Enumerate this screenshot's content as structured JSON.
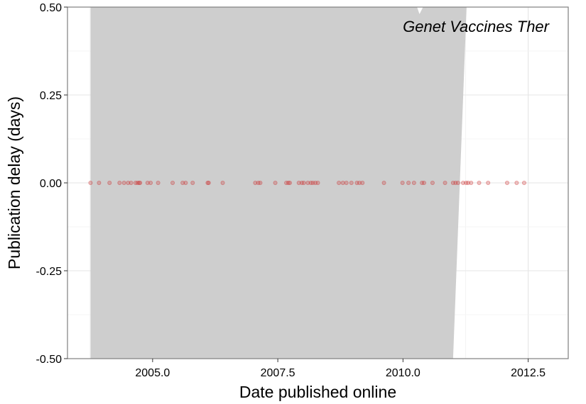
{
  "chart_data": {
    "type": "scatter",
    "title": "",
    "annotation": "Genet Vaccines Ther",
    "xlabel": "Date published online",
    "ylabel": "Publication delay (days)",
    "xlim": [
      2003.3,
      2013.3
    ],
    "ylim": [
      -0.5,
      0.5
    ],
    "x_ticks": [
      2005.0,
      2007.5,
      2010.0,
      2012.5
    ],
    "x_tick_labels": [
      "2005.0",
      "2007.5",
      "2010.0",
      "2012.5"
    ],
    "y_ticks": [
      0.5,
      0.25,
      0.0,
      -0.25,
      -0.5
    ],
    "y_tick_labels": [
      "0.50",
      "0.25",
      "0.00",
      "-0.25",
      "-0.50"
    ],
    "grid": true,
    "point_color": "#cc3333",
    "band_color": "#cccccc",
    "confidence_band": {
      "upper": [
        [
          2003.76,
          0.5
        ],
        [
          2010.28,
          0.5
        ],
        [
          2010.33,
          0.48
        ],
        [
          2010.4,
          0.5
        ],
        [
          2011.27,
          0.5
        ]
      ],
      "lower": [
        [
          2003.76,
          -0.5
        ],
        [
          2011.0,
          -0.5
        ],
        [
          2011.27,
          0.5
        ]
      ]
    },
    "series": [
      {
        "x": [
          2003.76,
          2003.93,
          2004.14,
          2004.34,
          2004.43,
          2004.51,
          2004.57,
          2004.66,
          2004.7,
          2004.73,
          2004.75,
          2004.9,
          2004.96,
          2005.11,
          2005.4,
          2005.6,
          2005.66,
          2005.8,
          2006.1,
          2006.12,
          2006.4,
          2007.05,
          2007.11,
          2007.15,
          2007.45,
          2007.67,
          2007.71,
          2007.74,
          2007.92,
          2007.98,
          2008.02,
          2008.1,
          2008.16,
          2008.2,
          2008.25,
          2008.3,
          2008.72,
          2008.8,
          2008.87,
          2008.97,
          2009.08,
          2009.13,
          2009.19,
          2009.62,
          2009.99,
          2010.11,
          2010.22,
          2010.38,
          2010.42,
          2010.59,
          2010.84,
          2011.0,
          2011.05,
          2011.1,
          2011.2,
          2011.26,
          2011.3,
          2011.36,
          2011.52,
          2011.7,
          2012.08,
          2012.27,
          2012.42
        ],
        "y": [
          0,
          0,
          0,
          0,
          0,
          0,
          0,
          0,
          0,
          0,
          0,
          0,
          0,
          0,
          0,
          0,
          0,
          0,
          0,
          0,
          0,
          0,
          0,
          0,
          0,
          0,
          0,
          0,
          0,
          0,
          0,
          0,
          0,
          0,
          0,
          0,
          0,
          0,
          0,
          0,
          0,
          0,
          0,
          0,
          0,
          0,
          0,
          0,
          0,
          0,
          0,
          0,
          0,
          0,
          0,
          0,
          0,
          0,
          0,
          0,
          0,
          0,
          0
        ]
      }
    ]
  }
}
